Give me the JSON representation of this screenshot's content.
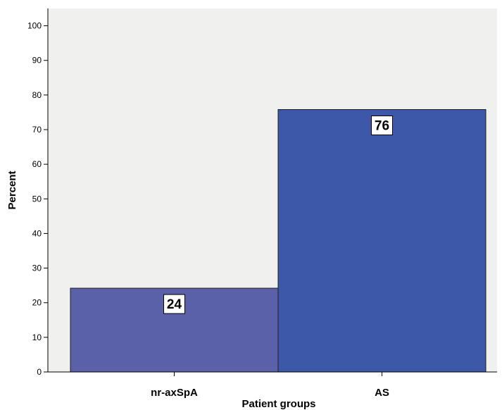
{
  "chart_data": {
    "type": "bar",
    "xlabel": "Patient groups",
    "ylabel": "Percent",
    "categories": [
      "nr-axSpA",
      "AS"
    ],
    "values": [
      24.2,
      75.8
    ],
    "data_labels": [
      "24",
      "76"
    ],
    "ylim": [
      0,
      105
    ],
    "yticks": [
      0,
      10,
      20,
      30,
      40,
      50,
      60,
      70,
      80,
      90,
      100
    ],
    "grid": false,
    "legend": "none",
    "colors": {
      "plot_background": "#f0f0ee",
      "bar_fills": [
        "#5b61a8",
        "#3d58a8"
      ],
      "bar_stroke": "#1e1e1e",
      "label_box": "#ffffff"
    }
  }
}
